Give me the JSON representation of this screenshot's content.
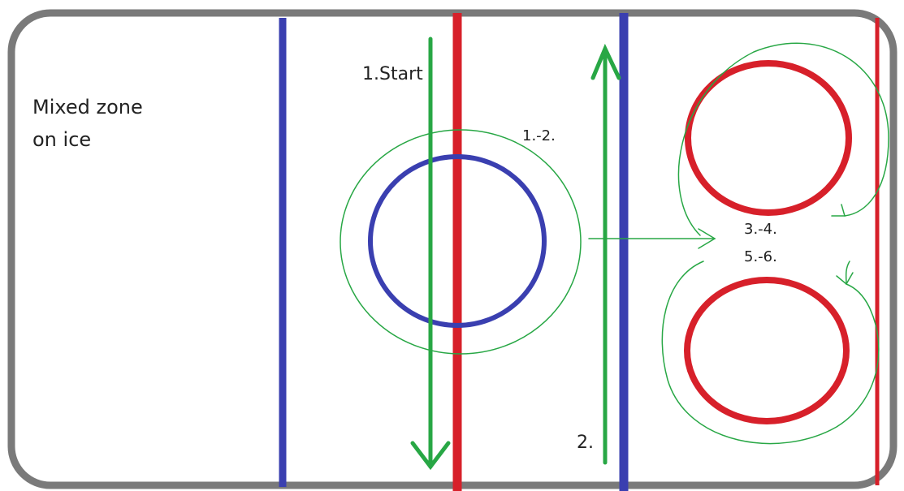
{
  "zone_label": {
    "line1": "Mixed zone",
    "line2": "on ice"
  },
  "steps": {
    "start": "1.Start",
    "loop_center": "1.-2.",
    "second_lane": "2.",
    "loop_upper": "3.-4.",
    "loop_lower": "5.-6."
  },
  "colors": {
    "blue_line": "#3a3fb0",
    "red_line": "#d7202a",
    "path": "#28a745",
    "boards": "#7a7a7a"
  }
}
